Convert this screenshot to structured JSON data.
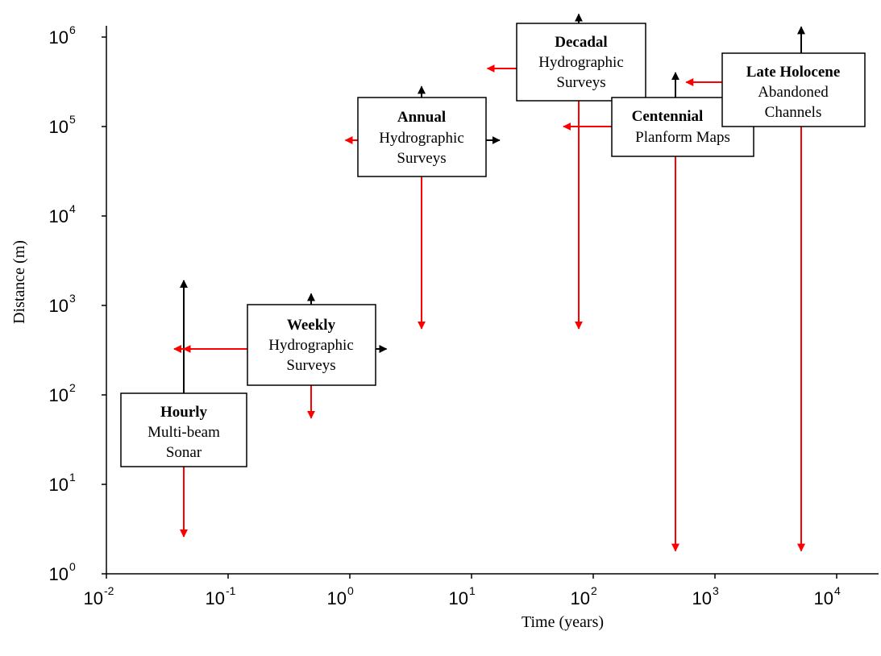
{
  "axes": {
    "xlabel": "Time (years)",
    "ylabel": "Distance (m)",
    "x_scale": "log",
    "y_scale": "log",
    "xlim": [
      0.01,
      10000
    ],
    "ylim": [
      1,
      1000000
    ],
    "x_ticks": [
      {
        "base": "10",
        "exp": "-2",
        "value": 0.01
      },
      {
        "base": "10",
        "exp": "-1",
        "value": 0.1
      },
      {
        "base": "10",
        "exp": "0",
        "value": 1
      },
      {
        "base": "10",
        "exp": "1",
        "value": 10
      },
      {
        "base": "10",
        "exp": "2",
        "value": 100
      },
      {
        "base": "10",
        "exp": "3",
        "value": 1000
      },
      {
        "base": "10",
        "exp": "4",
        "value": 10000
      }
    ],
    "y_ticks": [
      {
        "base": "10",
        "exp": "0",
        "value": 1
      },
      {
        "base": "10",
        "exp": "1",
        "value": 10
      },
      {
        "base": "10",
        "exp": "2",
        "value": 100
      },
      {
        "base": "10",
        "exp": "3",
        "value": 1000
      },
      {
        "base": "10",
        "exp": "4",
        "value": 10000
      },
      {
        "base": "10",
        "exp": "5",
        "value": 100000
      },
      {
        "base": "10",
        "exp": "6",
        "value": 1000000
      }
    ]
  },
  "colors": {
    "resolution_arrow": "#ff0000",
    "extent_arrow": "#000000",
    "box_border": "#000000"
  },
  "methods": [
    {
      "id": "hourly",
      "title": "Hourly",
      "lines": [
        "Multi-beam",
        "Sonar"
      ],
      "time_res": 0.043,
      "time_max": null,
      "dist_res": 2.6,
      "dist_max": 1900
    },
    {
      "id": "weekly",
      "title": "Weekly",
      "lines": [
        "Hydrographic",
        "Surveys"
      ],
      "time_res": 0.036,
      "time_max": 2.0,
      "dist_res": 55,
      "dist_max": 1350
    },
    {
      "id": "annual",
      "title": "Annual",
      "lines": [
        "Hydrographic",
        "Surveys"
      ],
      "time_res": 0.92,
      "time_max": 17,
      "dist_res": 550,
      "dist_max": 280000
    },
    {
      "id": "decadal",
      "title": "Decadal",
      "lines": [
        "Hydrographic",
        "Surveys"
      ],
      "time_res": 13.5,
      "time_max": null,
      "dist_res": 550,
      "dist_max": 1800000
    },
    {
      "id": "centennial",
      "title": "Centennial",
      "lines": [
        "Planform Maps"
      ],
      "time_res": 57,
      "time_max": null,
      "dist_res": 1.8,
      "dist_max": 400000
    },
    {
      "id": "late-holocene",
      "title": "Late Holocene",
      "lines": [
        "Abandoned",
        "Channels"
      ],
      "time_res": 580,
      "time_max": null,
      "dist_res": 1.8,
      "dist_max": 1300000
    }
  ]
}
